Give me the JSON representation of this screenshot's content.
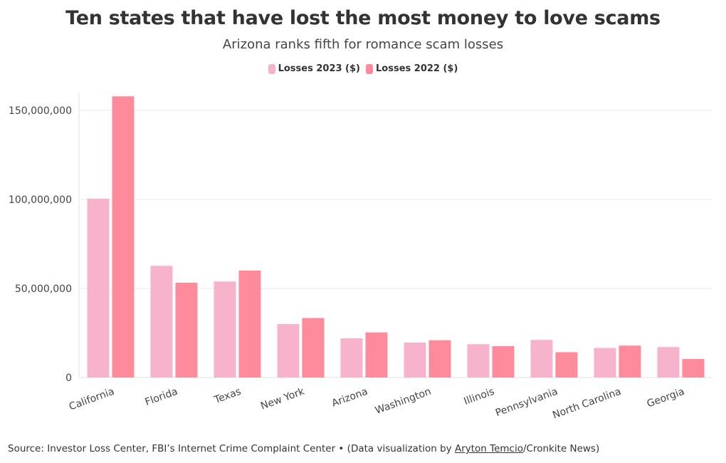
{
  "chart_data": {
    "type": "bar",
    "title": "Ten states that have lost the most money to love scams",
    "subtitle": "Arizona ranks fifth for romance scam losses",
    "categories": [
      "California",
      "Florida",
      "Texas",
      "New York",
      "Arizona",
      "Washington",
      "Illinois",
      "Pennsylvania",
      "North Carolina",
      "Georgia"
    ],
    "series": [
      {
        "name": "Losses 2023 ($)",
        "color": "#f7b3cc",
        "values": [
          100400000,
          62700000,
          53900000,
          30000000,
          22000000,
          19600000,
          18700000,
          21100000,
          16600000,
          17100000
        ]
      },
      {
        "name": "Losses 2022 ($)",
        "color": "#fd8b9c",
        "values": [
          157900000,
          53200000,
          60100000,
          33400000,
          25300000,
          20900000,
          17600000,
          14200000,
          17900000,
          10400000
        ]
      }
    ],
    "y_ticks": [
      0,
      50000000,
      100000000,
      150000000
    ],
    "y_tick_labels": [
      "0",
      "50,000,000",
      "100,000,000",
      "150,000,000"
    ],
    "ylim": [
      0,
      160000000
    ],
    "xlabel": "",
    "ylabel": "",
    "grid": true,
    "legend_position": "top-center"
  },
  "source": {
    "prefix": "Source: Investor Loss Center, FBI’s Internet Crime Complaint Center • (Data visualization by ",
    "credit": "Aryton Temcio",
    "suffix": "/Cronkite News)"
  }
}
